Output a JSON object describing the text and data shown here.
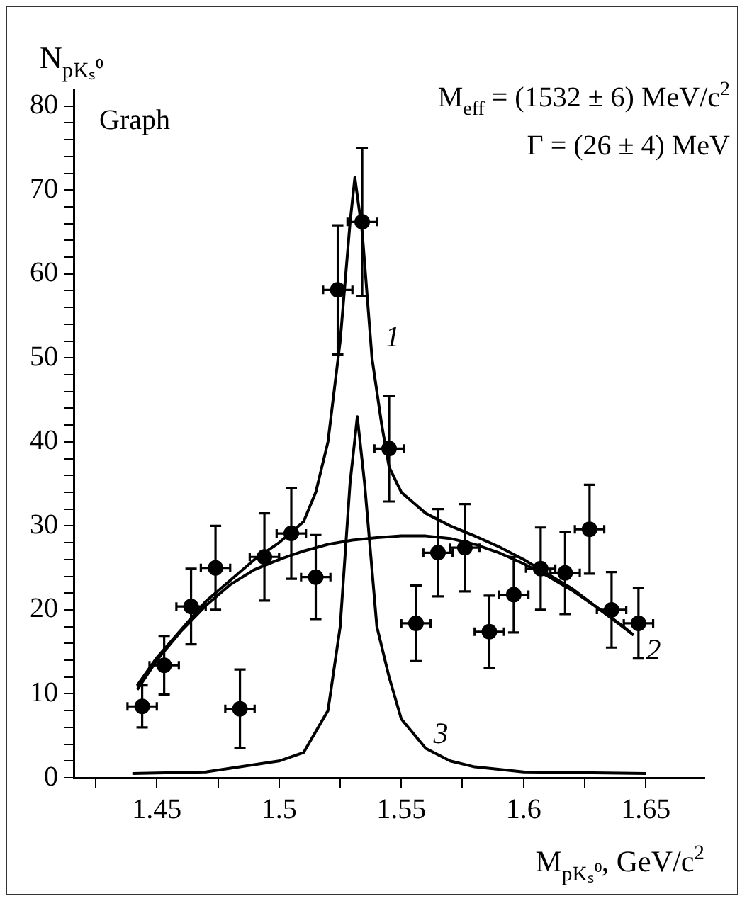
{
  "chart_data": {
    "type": "scatter",
    "xlabel": "M$_{pKₛ⁰}$, GeV/c$^{2}$",
    "ylabel": "N$_{pKₛ⁰}$",
    "xlim": [
      1.416,
      1.674
    ],
    "ylim": [
      0,
      82
    ],
    "xticks": [
      {
        "value": 1.425,
        "label": null
      },
      1.45,
      {
        "value": 1.475,
        "label": null
      },
      1.5,
      {
        "value": 1.525,
        "label": null
      },
      1.55,
      {
        "value": 1.575,
        "label": null
      },
      1.6,
      {
        "value": 1.625,
        "label": null
      },
      1.65
    ],
    "yticks": [
      0,
      {
        "value": 2,
        "label": null
      },
      {
        "value": 4,
        "label": null
      },
      {
        "value": 6,
        "label": null
      },
      {
        "value": 8,
        "label": null
      },
      10,
      {
        "value": 12,
        "label": null
      },
      {
        "value": 14,
        "label": null
      },
      {
        "value": 16,
        "label": null
      },
      {
        "value": 18,
        "label": null
      },
      20,
      {
        "value": 22,
        "label": null
      },
      {
        "value": 24,
        "label": null
      },
      {
        "value": 26,
        "label": null
      },
      {
        "value": 28,
        "label": null
      },
      30,
      {
        "value": 32,
        "label": null
      },
      {
        "value": 34,
        "label": null
      },
      {
        "value": 36,
        "label": null
      },
      {
        "value": 38,
        "label": null
      },
      40,
      {
        "value": 42,
        "label": null
      },
      {
        "value": 44,
        "label": null
      },
      {
        "value": 46,
        "label": null
      },
      {
        "value": 48,
        "label": null
      },
      50,
      {
        "value": 52,
        "label": null
      },
      {
        "value": 54,
        "label": null
      },
      {
        "value": 56,
        "label": null
      },
      {
        "value": 58,
        "label": null
      },
      60,
      {
        "value": 62,
        "label": null
      },
      {
        "value": 64,
        "label": null
      },
      {
        "value": 66,
        "label": null
      },
      {
        "value": 68,
        "label": null
      },
      70,
      {
        "value": 72,
        "label": null
      },
      {
        "value": 74,
        "label": null
      },
      {
        "value": 76,
        "label": null
      },
      {
        "value": 78,
        "label": null
      },
      80
    ],
    "annotations": [
      "Graph",
      "M$_{eff}$ = (1532 ± 6) MeV/c$^{2}$",
      "Γ = (26 ± 4) MeV",
      "1",
      "2",
      "3"
    ],
    "series": [
      {
        "marker": "circle",
        "color": "#000000",
        "x": [
          1.444,
          1.453,
          1.464,
          1.474,
          1.484,
          1.494,
          1.505,
          1.515,
          1.524,
          1.534,
          1.545,
          1.556,
          1.565,
          1.576,
          1.586,
          1.596,
          1.607,
          1.617,
          1.627,
          1.636,
          1.647
        ],
        "values": [
          8.5,
          13.4,
          20.4,
          25,
          8.2,
          26.3,
          29.1,
          23.9,
          58.1,
          66.2,
          39.2,
          18.4,
          26.8,
          27.4,
          17.4,
          21.8,
          24.9,
          24.4,
          29.6,
          20,
          18.4
        ],
        "errors": [
          2.5,
          3.5,
          4.5,
          5,
          4.7,
          5.2,
          5.4,
          5,
          7.7,
          8.8,
          6.3,
          4.5,
          5.2,
          5.2,
          4.3,
          4.5,
          4.9,
          4.9,
          5.3,
          4.5,
          4.2
        ],
        "xerrors": [
          0.006,
          0.006,
          0.006,
          0.006,
          0.006,
          0.006,
          0.006,
          0.006,
          0.006,
          0.006,
          0.006,
          0.006,
          0.006,
          0.006,
          0.006,
          0.006,
          0.006,
          0.006,
          0.006,
          0.006,
          0.006
        ]
      },
      {
        "type": "line",
        "marker": "none",
        "color": "#000000",
        "x": [
          1.442,
          1.45,
          1.47,
          1.49,
          1.5,
          1.51,
          1.515,
          1.52,
          1.525,
          1.529,
          1.531,
          1.534,
          1.538,
          1.542,
          1.545,
          1.55,
          1.56,
          1.57,
          1.58,
          1.59,
          1.6,
          1.62,
          1.645
        ],
        "values": [
          11,
          14.3,
          21,
          26,
          28,
          30.5,
          34,
          40,
          52,
          66,
          71.5,
          65,
          50,
          42,
          37,
          34,
          31.5,
          30,
          28.8,
          27.5,
          26,
          22.5,
          17
        ]
      },
      {
        "type": "line",
        "marker": "none",
        "color": "#000000",
        "x": [
          1.442,
          1.45,
          1.46,
          1.47,
          1.48,
          1.49,
          1.5,
          1.51,
          1.52,
          1.53,
          1.54,
          1.55,
          1.56,
          1.57,
          1.58,
          1.59,
          1.6,
          1.61,
          1.62,
          1.63,
          1.64,
          1.645
        ],
        "values": [
          10.5,
          14,
          17.5,
          20.5,
          23,
          24.8,
          26,
          27,
          27.8,
          28.3,
          28.6,
          28.8,
          28.8,
          28.5,
          27.8,
          26.8,
          25.5,
          24,
          22.3,
          20.3,
          18.2,
          17
        ]
      },
      {
        "type": "line",
        "marker": "none",
        "color": "#000000",
        "x": [
          1.44,
          1.47,
          1.5,
          1.51,
          1.52,
          1.525,
          1.529,
          1.532,
          1.535,
          1.54,
          1.545,
          1.55,
          1.56,
          1.57,
          1.58,
          1.6,
          1.65
        ],
        "values": [
          0.5,
          0.7,
          2,
          3,
          8,
          18,
          35,
          43,
          35,
          18,
          12,
          7,
          3.5,
          2,
          1.3,
          0.7,
          0.5
        ]
      }
    ]
  }
}
